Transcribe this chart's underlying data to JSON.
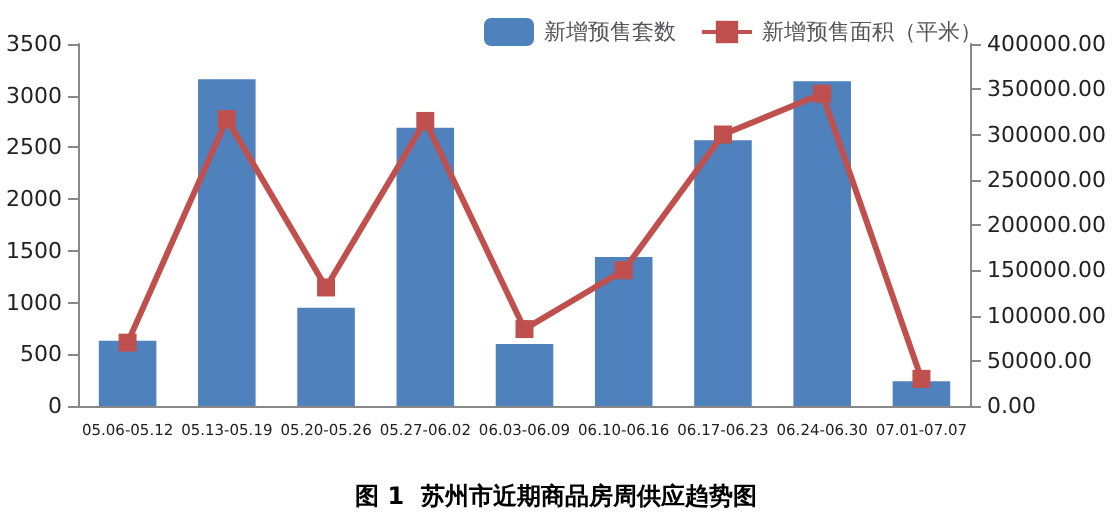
{
  "chart_data": {
    "type": "bar",
    "title": "图 1  苏州市近期商品房周供应趋势图",
    "categories": [
      "05.06-05.12",
      "05.13-05.19",
      "05.20-05.26",
      "05.27-06.02",
      "06.03-06.09",
      "06.10-06.16",
      "06.17-06.23",
      "06.24-06.30",
      "07.01-07.07"
    ],
    "series": [
      {
        "name": "新增预售套数",
        "color": "#4f81bd",
        "values": [
          630,
          3160,
          950,
          2690,
          600,
          1440,
          2570,
          3140,
          240
        ]
      },
      {
        "name": "新增预售面积（平米）",
        "type": "line",
        "axis": "y2",
        "color": "#c0504d",
        "marker": "square",
        "values": [
          70000,
          317000,
          131000,
          315000,
          85000,
          150000,
          300000,
          345000,
          30000
        ]
      }
    ],
    "ylim": [
      0,
      3500
    ],
    "yticks": [
      0,
      500,
      1000,
      1500,
      2000,
      2500,
      3000,
      3500
    ],
    "y2lim": [
      0,
      400000
    ],
    "y2ticks": [
      {
        "value": 0,
        "label": "0.00"
      },
      {
        "value": 50000,
        "label": "50000.00"
      },
      {
        "value": 100000,
        "label": "100000.00"
      },
      {
        "value": 150000,
        "label": "150000.00"
      },
      {
        "value": 200000,
        "label": "200000.00"
      },
      {
        "value": 250000,
        "label": "250000.00"
      },
      {
        "value": 300000,
        "label": "300000.00"
      },
      {
        "value": 350000,
        "label": "350000.00"
      },
      {
        "value": 400000,
        "label": "400000.00"
      }
    ],
    "grid": false,
    "legend": "top right"
  }
}
